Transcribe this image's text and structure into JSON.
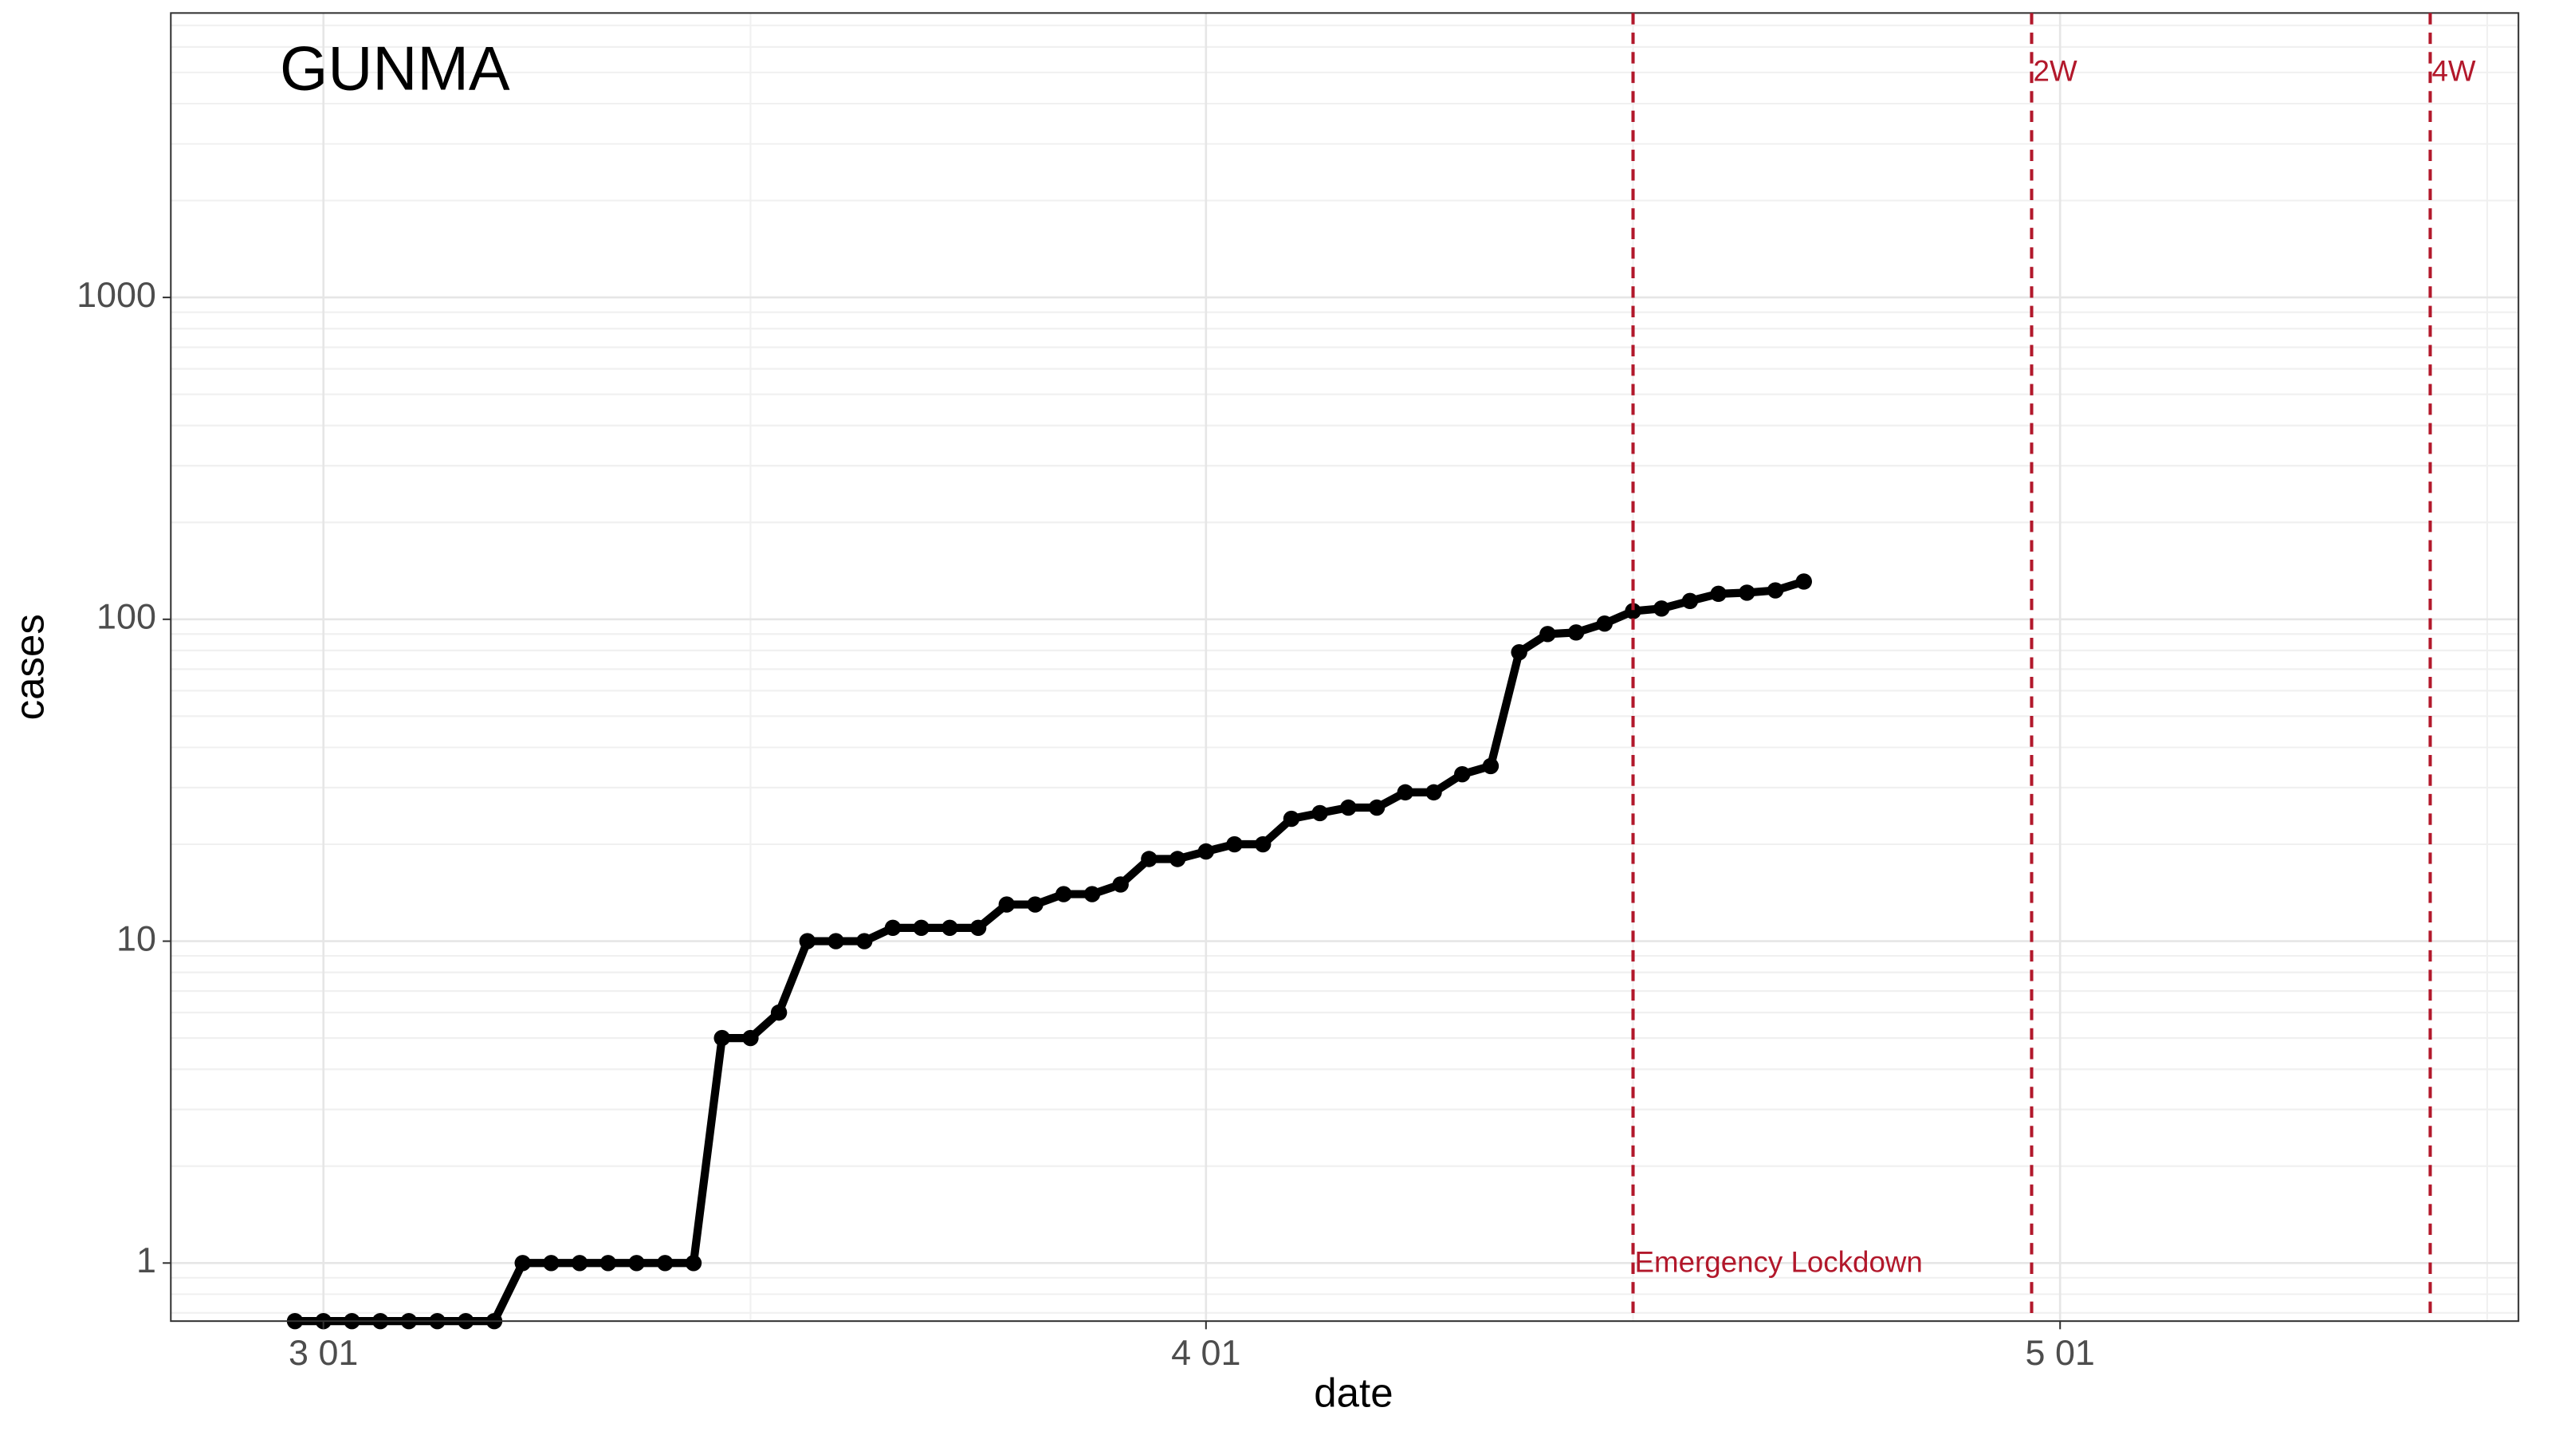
{
  "chart_data": {
    "type": "line",
    "title": "GUNMA",
    "x_label": "date",
    "y_label": "cases",
    "log_y": true,
    "grid": true,
    "x": [
      "02-29",
      "03-01",
      "03-02",
      "03-03",
      "03-04",
      "03-05",
      "03-06",
      "03-07",
      "03-08",
      "03-09",
      "03-10",
      "03-11",
      "03-12",
      "03-13",
      "03-14",
      "03-15",
      "03-16",
      "03-17",
      "03-18",
      "03-19",
      "03-20",
      "03-21",
      "03-22",
      "03-23",
      "03-24",
      "03-25",
      "03-26",
      "03-27",
      "03-28",
      "03-29",
      "03-30",
      "03-31",
      "04-01",
      "04-02",
      "04-03",
      "04-04",
      "04-05",
      "04-06",
      "04-07",
      "04-08",
      "04-09",
      "04-10",
      "04-11",
      "04-12",
      "04-13",
      "04-14",
      "04-15",
      "04-16",
      "04-17",
      "04-18",
      "04-19",
      "04-20",
      "04-21",
      "04-22"
    ],
    "series": [
      {
        "color": "#000000",
        "values": [
          0,
          0,
          0,
          0,
          0,
          0,
          0,
          0,
          1,
          1,
          1,
          1,
          1,
          1,
          1,
          5,
          5,
          6,
          10,
          10,
          10,
          11,
          11,
          11,
          11,
          13,
          13,
          14,
          14,
          15,
          18,
          18,
          19,
          20,
          20,
          24,
          25,
          26,
          26,
          29,
          29,
          33,
          35,
          79,
          90,
          91,
          97,
          106,
          108,
          114,
          120,
          121,
          123,
          131
        ]
      }
    ],
    "xlim": [
      "02-25",
      "05-17"
    ],
    "xticks": [
      {
        "value": "03-01",
        "label": "3 01"
      },
      {
        "value": "04-01",
        "label": "4 01"
      },
      {
        "value": "05-01",
        "label": "5 01"
      }
    ],
    "ylim": [
      0.66,
      7650
    ],
    "yticks": [
      1,
      10,
      100,
      1000
    ],
    "vlines": [
      {
        "x": "04-16",
        "label": "Emergency Lockdown",
        "color": "#b2182b"
      },
      {
        "x": "04-30",
        "label": "2W",
        "color": "#b2182b"
      },
      {
        "x": "05-14",
        "label": "4W",
        "color": "#b2182b"
      }
    ]
  }
}
